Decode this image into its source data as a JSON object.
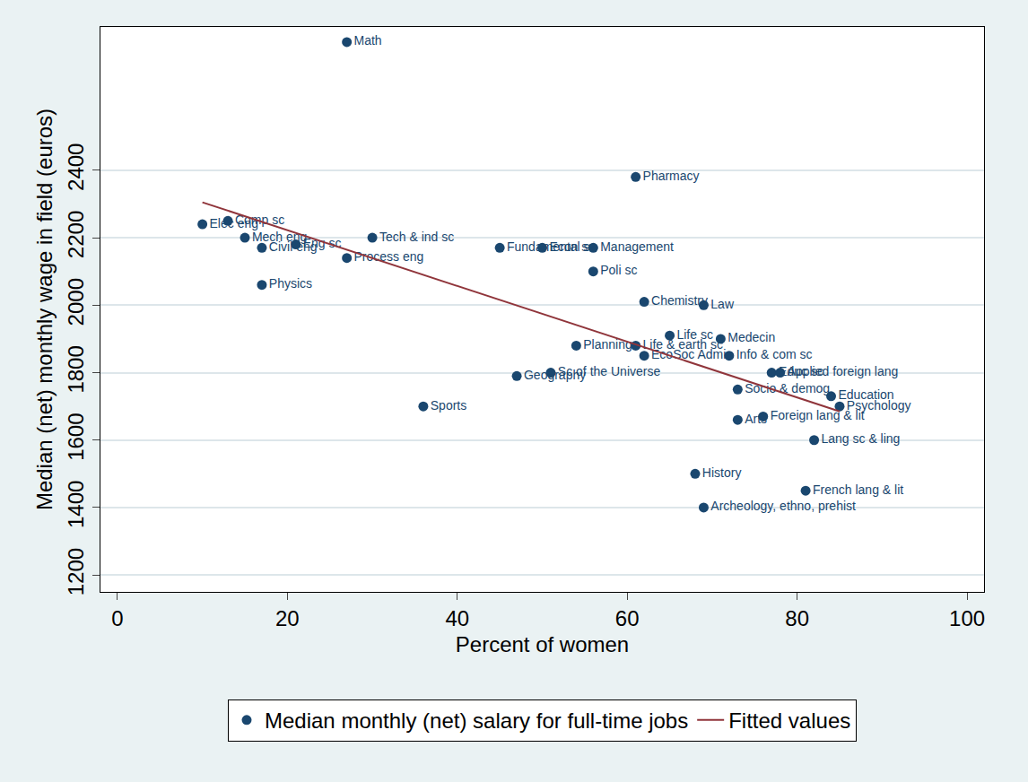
{
  "chart_data": {
    "type": "scatter",
    "x_label": "Percent of women",
    "y_label": "Median (net) monthly wage in field (euros)",
    "xlim": [
      -2,
      102
    ],
    "ylim": [
      1150,
      2825
    ],
    "xticks": [
      0,
      20,
      40,
      60,
      80,
      100
    ],
    "yticks": [
      1200,
      1400,
      1600,
      1800,
      2000,
      2200,
      2400
    ],
    "grid": "y",
    "legend": "bottom",
    "series": [
      {
        "name": "Median monthly (net) salary for full-time jobs",
        "type": "scatter",
        "marker": "circle",
        "color": "#1a476f",
        "labels": [
          "Math",
          "Pharmacy",
          "Elec eng",
          "Comp sc",
          "Mech eng",
          "Eng sc",
          "Civil eng",
          "Process eng",
          "Physics",
          "Tech & ind sc",
          "Fundamental sc",
          "Econ sc",
          "Management",
          "Poli sc",
          "Chemistry",
          "Law",
          "Life sc",
          "Medecin",
          "Planning",
          "Life & earth sc",
          "EcoSoc Admin",
          "Info & com sc",
          "Educ sc",
          "Applied foreign lang",
          "Sc of the Universe",
          "Geography",
          "Sports",
          "Socio & demog",
          "Education",
          "Psychology",
          "Arts",
          "Foreign lang & lit",
          "Lang sc & ling",
          "History",
          "French lang & lit",
          "Archeology, ethno, prehist"
        ],
        "x": [
          27,
          61,
          10,
          13,
          15,
          21,
          17,
          27,
          17,
          30,
          45,
          50,
          56,
          56,
          62,
          69,
          65,
          71,
          54,
          61,
          62,
          72,
          77,
          78,
          51,
          47,
          36,
          73,
          84,
          85,
          73,
          76,
          82,
          68,
          81,
          69
        ],
        "values": [
          2780,
          2380,
          2240,
          2250,
          2200,
          2180,
          2170,
          2140,
          2060,
          2200,
          2170,
          2170,
          2170,
          2100,
          2010,
          2000,
          1910,
          1900,
          1880,
          1880,
          1850,
          1850,
          1800,
          1800,
          1800,
          1790,
          1700,
          1750,
          1730,
          1700,
          1660,
          1670,
          1600,
          1500,
          1450,
          1400
        ]
      },
      {
        "name": "Fitted values",
        "type": "line",
        "line_style": "solid",
        "color": "#90353b",
        "x": [
          10,
          85
        ],
        "values": [
          2305,
          1685
        ]
      }
    ]
  }
}
